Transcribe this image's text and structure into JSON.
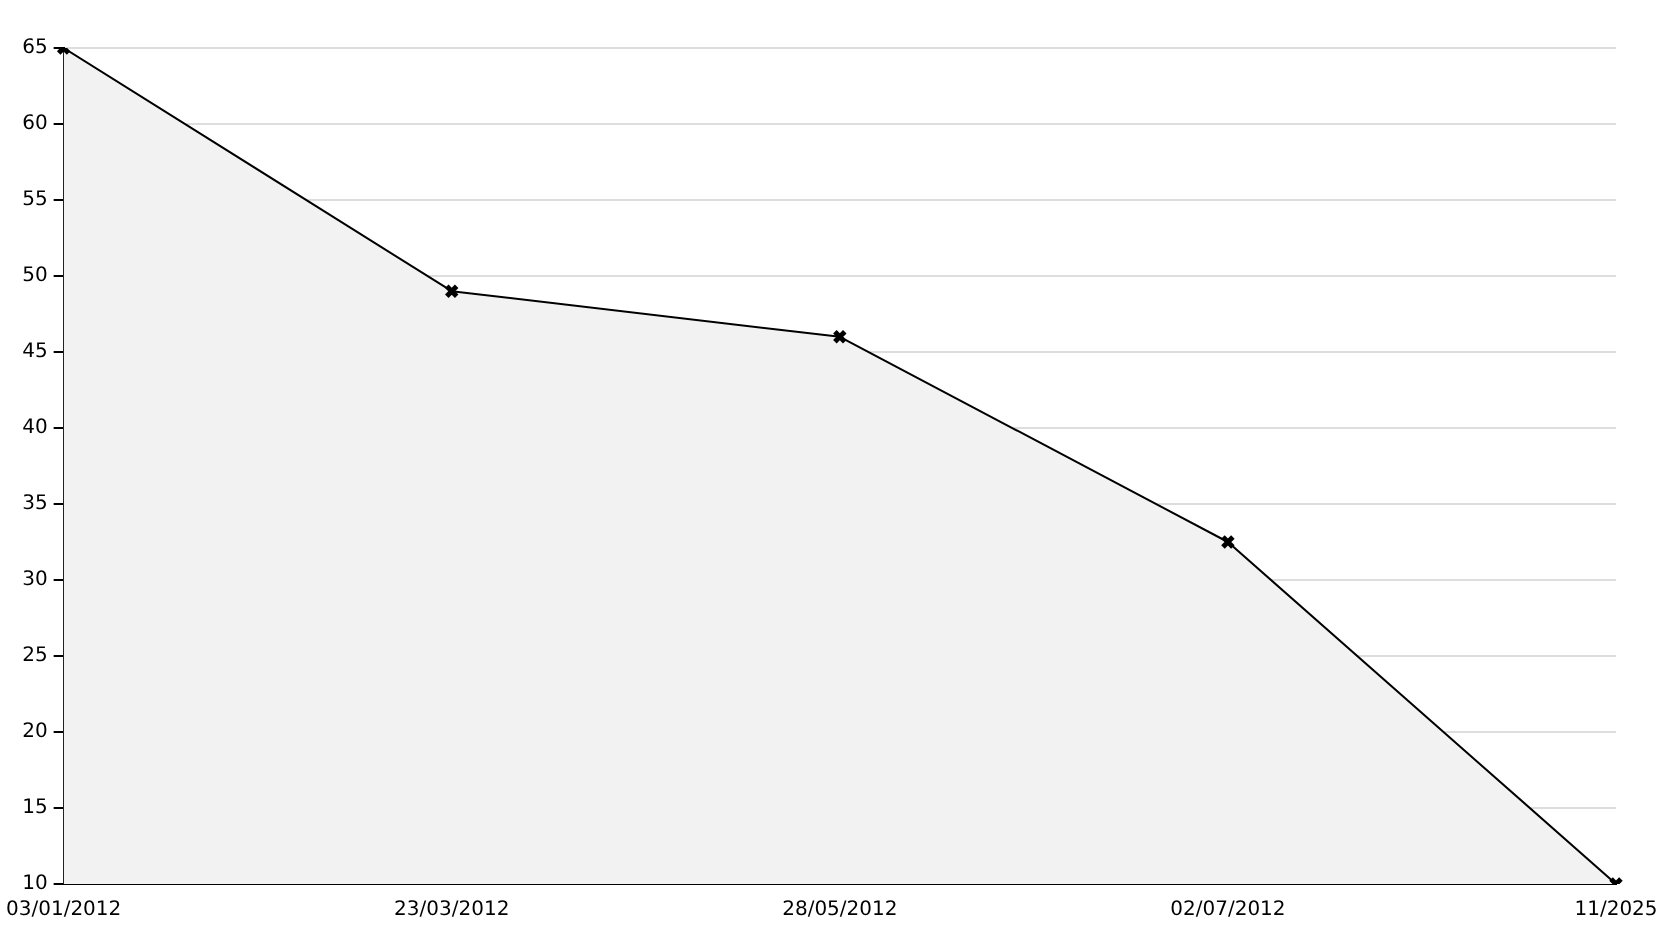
{
  "chart_data": {
    "type": "area",
    "categories": [
      "03/01/2012",
      "23/03/2012",
      "28/05/2012",
      "02/07/2012",
      "11/2025"
    ],
    "series": [
      {
        "color": "#000000",
        "values": [
          65,
          49,
          46,
          32.5,
          10
        ]
      }
    ],
    "ylim": [
      10,
      65
    ],
    "yticks": [
      10,
      15,
      20,
      25,
      30,
      35,
      40,
      45,
      50,
      55,
      60,
      65
    ],
    "grid": "y",
    "legend": false,
    "marker": "cross",
    "line_style": "solid"
  }
}
